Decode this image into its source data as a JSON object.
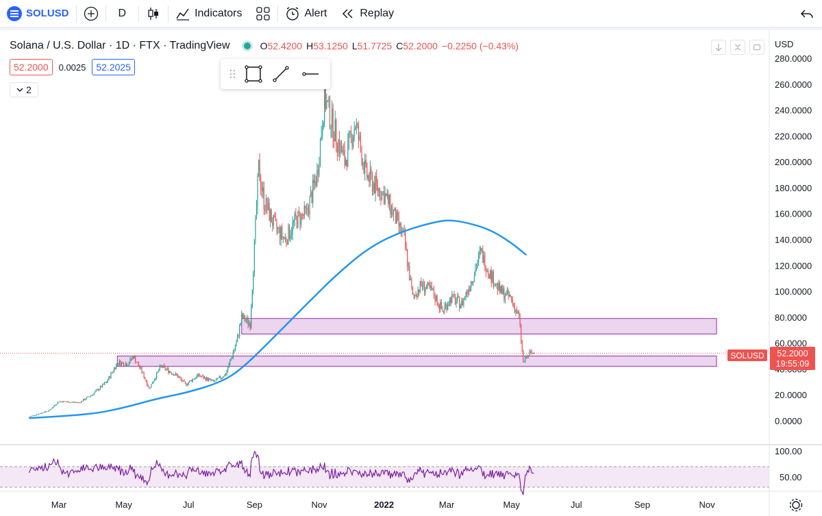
{
  "toolbar": {
    "symbol": "SOLUSD",
    "interval": "D",
    "indicators_label": "Indicators",
    "alert_label": "Alert",
    "replay_label": "Replay"
  },
  "legend": {
    "title": "Solana / U.S. Dollar · 1D · FTX · TradingView",
    "o_key": "O",
    "o_val": "52.4200",
    "h_key": "H",
    "h_val": "53.1250",
    "l_key": "L",
    "l_val": "51.7725",
    "c_key": "C",
    "c_val": "52.2000",
    "change": "−0.2250 (−0.43%)",
    "bid": "52.2000",
    "spread": "0.0025",
    "ask": "52.2025",
    "collapse_count": "2"
  },
  "axis": {
    "currency": "USD",
    "symbol_tag": "SOLUSD",
    "last_price": "52.2000",
    "countdown": "19:55:09"
  },
  "colors": {
    "up": "#26a69a",
    "down": "#ef5350",
    "ma": "#2196f3",
    "zone_fill": "#e1bee7",
    "zone_stroke": "#9c27b0",
    "rsi": "#7b1fa2"
  },
  "chart_data": {
    "type": "candlestick",
    "y_ticks": [
      "0.0000",
      "20.0000",
      "40.0000",
      "60.0000",
      "80.0000",
      "100.0000",
      "120.0000",
      "140.0000",
      "160.0000",
      "180.0000",
      "200.0000",
      "220.0000",
      "240.0000",
      "260.0000",
      "280.0000"
    ],
    "ylim": [
      0,
      280
    ],
    "x_ticks": [
      "Mar",
      "May",
      "Jul",
      "Sep",
      "Nov",
      "2022",
      "Mar",
      "May",
      "Jul",
      "Sep",
      "Nov"
    ],
    "price_path": [
      [
        "2021-02-01",
        3
      ],
      [
        "2021-02-20",
        8
      ],
      [
        "2021-03-01",
        15
      ],
      [
        "2021-03-20",
        14
      ],
      [
        "2021-04-01",
        20
      ],
      [
        "2021-04-15",
        30
      ],
      [
        "2021-04-25",
        45
      ],
      [
        "2021-05-05",
        44
      ],
      [
        "2021-05-10",
        50
      ],
      [
        "2021-05-18",
        38
      ],
      [
        "2021-05-25",
        25
      ],
      [
        "2021-06-05",
        42
      ],
      [
        "2021-06-20",
        35
      ],
      [
        "2021-06-28",
        28
      ],
      [
        "2021-07-10",
        35
      ],
      [
        "2021-07-25",
        30
      ],
      [
        "2021-08-05",
        36
      ],
      [
        "2021-08-15",
        60
      ],
      [
        "2021-08-20",
        80
      ],
      [
        "2021-08-28",
        75
      ],
      [
        "2021-09-05",
        195
      ],
      [
        "2021-09-10",
        170
      ],
      [
        "2021-09-20",
        150
      ],
      [
        "2021-09-30",
        140
      ],
      [
        "2021-10-10",
        155
      ],
      [
        "2021-10-20",
        160
      ],
      [
        "2021-10-30",
        190
      ],
      [
        "2021-11-06",
        250
      ],
      [
        "2021-11-15",
        225
      ],
      [
        "2021-11-25",
        200
      ],
      [
        "2021-12-05",
        230
      ],
      [
        "2021-12-15",
        190
      ],
      [
        "2021-12-25",
        180
      ],
      [
        "2022-01-01",
        175
      ],
      [
        "2022-01-10",
        160
      ],
      [
        "2022-01-20",
        140
      ],
      [
        "2022-01-28",
        95
      ],
      [
        "2022-02-05",
        105
      ],
      [
        "2022-02-15",
        100
      ],
      [
        "2022-02-25",
        85
      ],
      [
        "2022-03-05",
        95
      ],
      [
        "2022-03-15",
        90
      ],
      [
        "2022-03-25",
        110
      ],
      [
        "2022-04-02",
        130
      ],
      [
        "2022-04-10",
        115
      ],
      [
        "2022-04-20",
        100
      ],
      [
        "2022-04-30",
        95
      ],
      [
        "2022-05-08",
        80
      ],
      [
        "2022-05-12",
        45
      ],
      [
        "2022-05-18",
        52
      ],
      [
        "2022-05-22",
        52
      ]
    ],
    "ma_path": [
      [
        "2021-02-01",
        2
      ],
      [
        "2021-04-01",
        5
      ],
      [
        "2021-05-01",
        10
      ],
      [
        "2021-06-01",
        17
      ],
      [
        "2021-07-01",
        22
      ],
      [
        "2021-08-01",
        30
      ],
      [
        "2021-08-20",
        40
      ],
      [
        "2021-09-20",
        65
      ],
      [
        "2021-10-20",
        90
      ],
      [
        "2021-11-20",
        115
      ],
      [
        "2021-12-20",
        135
      ],
      [
        "2022-01-20",
        147
      ],
      [
        "2022-02-20",
        154
      ],
      [
        "2022-03-05",
        155
      ],
      [
        "2022-03-20",
        153
      ],
      [
        "2022-04-10",
        148
      ],
      [
        "2022-04-30",
        138
      ],
      [
        "2022-05-15",
        128
      ]
    ],
    "zones": [
      {
        "start": "2021-08-20",
        "end": "2022-11-10",
        "low": 67,
        "high": 79
      },
      {
        "start": "2021-04-25",
        "end": "2022-11-10",
        "low": 42,
        "high": 50
      }
    ],
    "rsi": {
      "ticks": [
        "50.00",
        "100.00"
      ],
      "ylim": [
        0,
        100
      ],
      "upper": 70,
      "lower": 30
    }
  }
}
